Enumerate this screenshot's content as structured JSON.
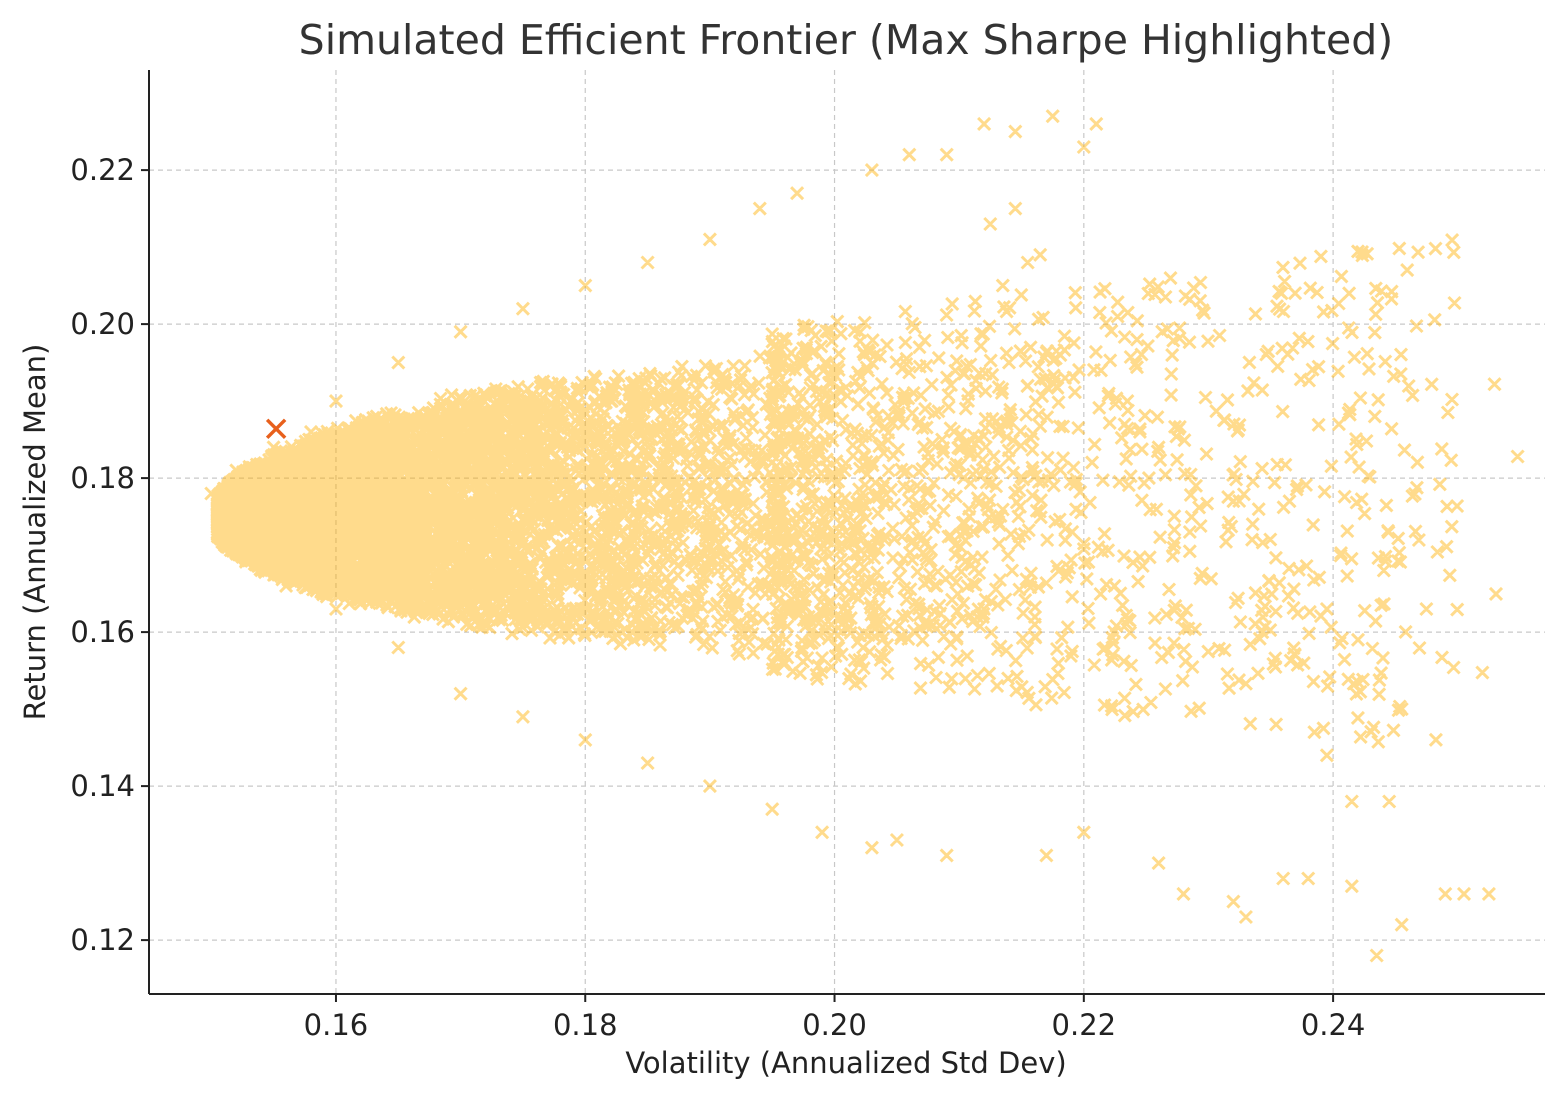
{
  "chart_data": {
    "type": "scatter",
    "title": "Simulated Efficient Frontier (Max Sharpe Highlighted)",
    "xlabel": "Volatility (Annualized Std Dev)",
    "ylabel": "Return (Annualized Mean)",
    "xlim": [
      0.145,
      0.257
    ],
    "ylim": [
      0.113,
      0.233
    ],
    "xticks": [
      0.16,
      0.18,
      0.2,
      0.22,
      0.24
    ],
    "yticks": [
      0.12,
      0.14,
      0.16,
      0.18,
      0.2,
      0.22
    ],
    "xtick_labels": [
      "0.16",
      "0.18",
      "0.20",
      "0.22",
      "0.24"
    ],
    "ytick_labels": [
      "0.12",
      "0.14",
      "0.16",
      "0.18",
      "0.20",
      "0.22"
    ],
    "grid": true,
    "marker": "x",
    "series": [
      {
        "color": "#FFB000",
        "alpha": 0.45,
        "description_points": [
          [
            0.15,
            0.178
          ],
          [
            0.151,
            0.173
          ],
          [
            0.152,
            0.181
          ],
          [
            0.153,
            0.17
          ],
          [
            0.155,
            0.184
          ],
          [
            0.156,
            0.166
          ],
          [
            0.158,
            0.186
          ],
          [
            0.16,
            0.163
          ],
          [
            0.165,
            0.158
          ],
          [
            0.17,
            0.152
          ],
          [
            0.175,
            0.149
          ],
          [
            0.18,
            0.146
          ],
          [
            0.185,
            0.143
          ],
          [
            0.19,
            0.14
          ],
          [
            0.195,
            0.137
          ],
          [
            0.199,
            0.134
          ],
          [
            0.16,
            0.19
          ],
          [
            0.165,
            0.195
          ],
          [
            0.17,
            0.199
          ],
          [
            0.175,
            0.202
          ],
          [
            0.18,
            0.205
          ],
          [
            0.185,
            0.208
          ],
          [
            0.19,
            0.211
          ],
          [
            0.194,
            0.215
          ],
          [
            0.197,
            0.217
          ],
          [
            0.203,
            0.22
          ],
          [
            0.206,
            0.222
          ],
          [
            0.209,
            0.222
          ],
          [
            0.212,
            0.226
          ],
          [
            0.2145,
            0.225
          ],
          [
            0.2175,
            0.227
          ],
          [
            0.22,
            0.223
          ],
          [
            0.221,
            0.226
          ],
          [
            0.203,
            0.132
          ],
          [
            0.205,
            0.133
          ],
          [
            0.209,
            0.131
          ],
          [
            0.217,
            0.131
          ],
          [
            0.22,
            0.134
          ],
          [
            0.226,
            0.13
          ],
          [
            0.228,
            0.126
          ],
          [
            0.232,
            0.125
          ],
          [
            0.233,
            0.123
          ],
          [
            0.236,
            0.128
          ],
          [
            0.238,
            0.128
          ],
          [
            0.2415,
            0.127
          ],
          [
            0.2435,
            0.118
          ],
          [
            0.2455,
            0.122
          ],
          [
            0.249,
            0.126
          ],
          [
            0.2505,
            0.126
          ],
          [
            0.2525,
            0.126
          ],
          [
            0.2455,
            0.15
          ],
          [
            0.2445,
            0.138
          ],
          [
            0.2415,
            0.138
          ],
          [
            0.2395,
            0.144
          ],
          [
            0.2385,
            0.147
          ],
          [
            0.2395,
            0.163
          ],
          [
            0.242,
            0.159
          ],
          [
            0.2365,
            0.177
          ],
          [
            0.232,
            0.177
          ],
          [
            0.2335,
            0.172
          ],
          [
            0.229,
            0.179
          ],
          [
            0.2285,
            0.173
          ],
          [
            0.226,
            0.184
          ],
          [
            0.2245,
            0.186
          ],
          [
            0.2235,
            0.19
          ],
          [
            0.222,
            0.191
          ],
          [
            0.2185,
            0.193
          ],
          [
            0.214,
            0.195
          ],
          [
            0.2155,
            0.192
          ],
          [
            0.2135,
            0.205
          ],
          [
            0.2155,
            0.208
          ],
          [
            0.2165,
            0.209
          ],
          [
            0.2145,
            0.215
          ],
          [
            0.2125,
            0.213
          ]
        ]
      },
      {
        "name": "",
        "color": "#E8601C",
        "x": [
          0.1552
        ],
        "y": [
          0.1864
        ]
      }
    ]
  }
}
